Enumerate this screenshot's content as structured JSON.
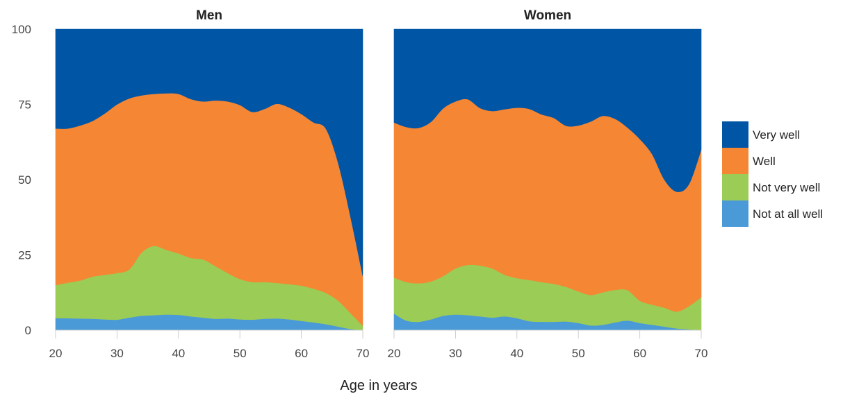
{
  "chart_data": {
    "type": "area",
    "stacked": true,
    "xlabel": "Age in years",
    "ylim": [
      0,
      100
    ],
    "xlim": [
      20,
      70
    ],
    "y_ticks": [
      0,
      25,
      50,
      75,
      100
    ],
    "x_ticks": [
      20,
      30,
      40,
      50,
      60,
      70
    ],
    "legend_position": "right",
    "legend": [
      {
        "name": "Very well",
        "color": "#0055a4"
      },
      {
        "name": "Well",
        "color": "#f58634"
      },
      {
        "name": "Not very well",
        "color": "#9bcc55"
      },
      {
        "name": "Not at all well",
        "color": "#4a9ad8"
      }
    ],
    "panels": [
      {
        "title": "Men",
        "x": [
          20,
          22,
          24,
          26,
          28,
          30,
          32,
          34,
          36,
          38,
          40,
          42,
          44,
          46,
          48,
          50,
          52,
          54,
          56,
          58,
          60,
          62,
          64,
          66,
          68,
          70
        ],
        "series": [
          {
            "name": "Not at all well",
            "values": [
              4,
              4,
              3.9,
              3.8,
              3.6,
              3.5,
              4.2,
              4.8,
              5,
              5.2,
              5.1,
              4.6,
              4.2,
              3.8,
              3.9,
              3.6,
              3.5,
              3.8,
              3.9,
              3.6,
              3.1,
              2.6,
              2,
              1.2,
              0.4,
              0
            ]
          },
          {
            "name": "Not very well",
            "values": [
              11,
              11.8,
              12.6,
              14,
              14.8,
              15.5,
              16,
              21,
              23,
              21.5,
              20.4,
              19.4,
              19.3,
              17.5,
              15.1,
              13.4,
              12.5,
              12.2,
              11.8,
              11.7,
              11.7,
              11.2,
              10.4,
              8.6,
              5.3,
              1.5
            ]
          },
          {
            "name": "Well",
            "values": [
              52,
              51.2,
              51.5,
              51.7,
              53.6,
              56,
              56.8,
              52.2,
              50.5,
              52,
              53,
              52.8,
              52.5,
              55,
              57,
              57.8,
              56.5,
              57.5,
              59.5,
              58.7,
              57,
              55.2,
              54.5,
              45.7,
              32,
              16.5
            ]
          },
          {
            "name": "Very well",
            "values": [
              33,
              33,
              32,
              30.5,
              28,
              25,
              23,
              22,
              21.5,
              21.3,
              21.5,
              23.2,
              24,
              23.7,
              24,
              25.2,
              27.5,
              26.5,
              24.8,
              26,
              28.2,
              31,
              33.1,
              44.5,
              62.3,
              82
            ]
          }
        ]
      },
      {
        "title": "Women",
        "x": [
          20,
          22,
          24,
          26,
          28,
          30,
          32,
          34,
          36,
          38,
          40,
          42,
          44,
          46,
          48,
          50,
          52,
          54,
          56,
          58,
          60,
          62,
          64,
          66,
          68,
          70
        ],
        "series": [
          {
            "name": "Not at all well",
            "values": [
              5.5,
              3.2,
              2.8,
              3.6,
              4.8,
              5.2,
              5,
              4.6,
              4.2,
              4.6,
              4,
              3,
              2.8,
              2.8,
              2.9,
              2.4,
              1.6,
              1.8,
              2.6,
              3.2,
              2.4,
              1.8,
              1.2,
              0.6,
              0.3,
              0
            ]
          },
          {
            "name": "Not very well",
            "values": [
              12,
              12.8,
              12.8,
              12.6,
              13.2,
              15.3,
              16.7,
              16.9,
              16.3,
              13.8,
              13.3,
              13.7,
              13.2,
              12.6,
              11.5,
              10.5,
              10.1,
              10.8,
              10.8,
              10.1,
              7.4,
              6.7,
              6.3,
              5.6,
              7.7,
              11
            ]
          },
          {
            "name": "Well",
            "values": [
              51.5,
              51.5,
              51.6,
              53,
              55.7,
              55.5,
              55,
              52.3,
              52.3,
              55,
              56.6,
              56.8,
              55.7,
              55.1,
              53.5,
              55.1,
              57.6,
              58.6,
              56.8,
              54,
              53.7,
              50,
              42.5,
              39.8,
              40.5,
              49
            ]
          },
          {
            "name": "Very well",
            "values": [
              31,
              32.5,
              32.8,
              30.8,
              26.3,
              24,
              23.3,
              26.2,
              27.2,
              26.6,
              26.1,
              26.5,
              28.3,
              29.5,
              32.1,
              32,
              30.7,
              28.8,
              29.8,
              32.7,
              36.5,
              41.5,
              50,
              54,
              51.5,
              40
            ]
          }
        ]
      }
    ]
  }
}
